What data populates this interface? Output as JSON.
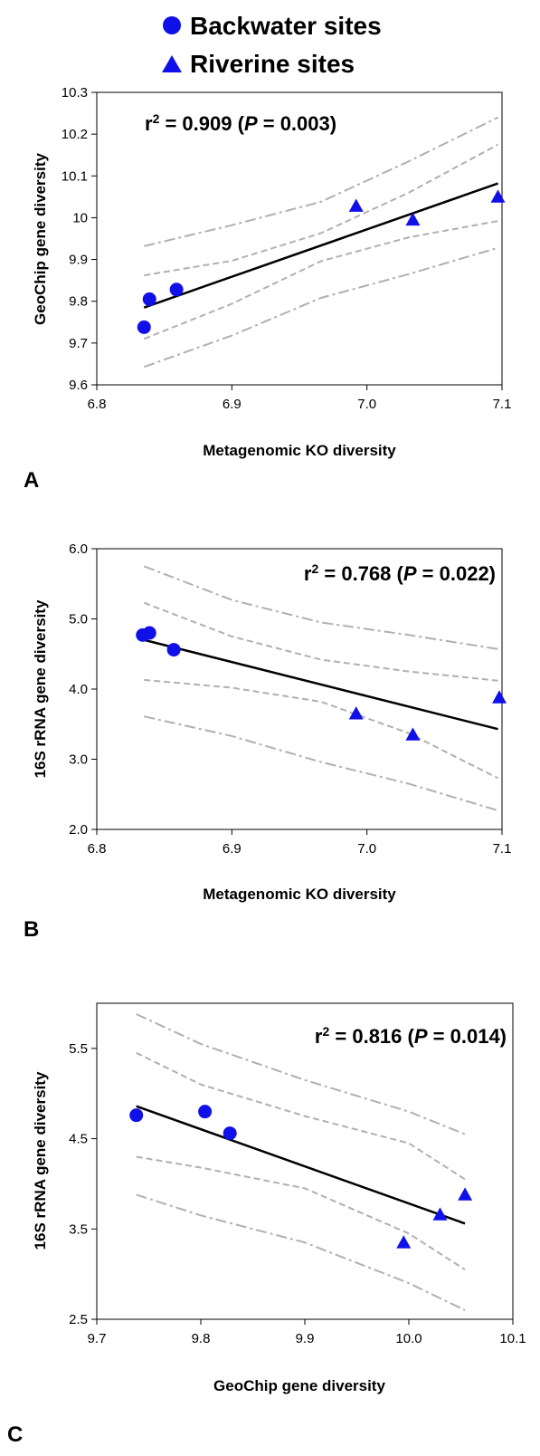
{
  "colors": {
    "marker": "#1010e8",
    "fit_line": "#000000",
    "band": "#b0b0b0",
    "axis": "#000000"
  },
  "legend": {
    "position": "top-center",
    "items": [
      {
        "label": "Backwater sites",
        "marker": "circle"
      },
      {
        "label": "Riverine sites",
        "marker": "triangle"
      }
    ]
  },
  "chart_data": [
    {
      "type": "scatter",
      "panel_label": "A",
      "xlabel": "Metagenomic KO diversity",
      "ylabel": "GeoChip gene diversity",
      "xlim": [
        6.8,
        7.1
      ],
      "ylim": [
        9.6,
        10.3
      ],
      "xticks": [
        "6.8",
        "6.9",
        "7.0",
        "7.1"
      ],
      "yticks": [
        "9.6",
        "9.7",
        "9.8",
        "9.9",
        "10",
        "10.1",
        "10.2",
        "10.3"
      ],
      "stat": {
        "r2_prefix": "r",
        "r2_sup": "2",
        "r2_value": " = 0.909 (",
        "p_letter": "P",
        "p_value": " = 0.003)"
      },
      "stat_position": "top-left",
      "series": [
        {
          "name": "Backwater sites",
          "marker": "circle",
          "x": [
            6.835,
            6.839,
            6.859
          ],
          "y": [
            9.738,
            9.805,
            9.828
          ]
        },
        {
          "name": "Riverine sites",
          "marker": "triangle",
          "x": [
            6.992,
            7.034,
            7.097
          ],
          "y": [
            10.028,
            9.995,
            10.05
          ]
        }
      ],
      "fit": {
        "x": [
          6.835,
          7.097
        ],
        "y": [
          9.785,
          10.082
        ]
      },
      "confidence_band": {
        "x": [
          6.835,
          6.9,
          6.966,
          7.031,
          7.097
        ],
        "upper": [
          9.862,
          9.897,
          9.963,
          10.06,
          10.175
        ],
        "lower": [
          9.71,
          9.794,
          9.896,
          9.953,
          9.992
        ]
      },
      "prediction_band": {
        "x": [
          6.835,
          6.9,
          6.966,
          7.031,
          7.097
        ],
        "upper": [
          9.932,
          9.982,
          10.038,
          10.135,
          10.24
        ],
        "lower": [
          9.643,
          9.718,
          9.808,
          9.865,
          9.928
        ]
      }
    },
    {
      "type": "scatter",
      "panel_label": "B",
      "xlabel": "Metagenomic KO diversity",
      "ylabel": "16S rRNA gene diversity",
      "xlim": [
        6.8,
        7.1
      ],
      "ylim": [
        2.0,
        6.0
      ],
      "xticks": [
        "6.8",
        "6.9",
        "7.0",
        "7.1"
      ],
      "yticks": [
        "2.0",
        "3.0",
        "4.0",
        "5.0",
        "6.0"
      ],
      "stat": {
        "r2_prefix": "r",
        "r2_sup": "2",
        "r2_value": " = 0.768 (",
        "p_letter": "P",
        "p_value": " = 0.022)"
      },
      "stat_position": "top-right",
      "series": [
        {
          "name": "Backwater sites",
          "marker": "circle",
          "x": [
            6.834,
            6.839,
            6.857
          ],
          "y": [
            4.77,
            4.8,
            4.56
          ]
        },
        {
          "name": "Riverine sites",
          "marker": "triangle",
          "x": [
            6.992,
            7.034,
            7.098
          ],
          "y": [
            3.65,
            3.35,
            3.88
          ]
        }
      ],
      "fit": {
        "x": [
          6.835,
          7.097
        ],
        "y": [
          4.7,
          3.43
        ]
      },
      "confidence_band": {
        "x": [
          6.835,
          6.9,
          6.966,
          7.031,
          7.097
        ],
        "upper": [
          5.23,
          4.75,
          4.42,
          4.25,
          4.12
        ],
        "lower": [
          4.13,
          4.02,
          3.82,
          3.37,
          2.73
        ]
      },
      "prediction_band": {
        "x": [
          6.835,
          6.9,
          6.966,
          7.031,
          7.097
        ],
        "upper": [
          5.75,
          5.27,
          4.95,
          4.77,
          4.57
        ],
        "lower": [
          3.61,
          3.33,
          2.96,
          2.65,
          2.27
        ]
      }
    },
    {
      "type": "scatter",
      "panel_label": "C",
      "xlabel": "GeoChip gene diversity",
      "ylabel": "16S rRNA gene diversity",
      "xlim": [
        9.7,
        10.1
      ],
      "ylim": [
        2.5,
        6.0
      ],
      "xticks": [
        "9.7",
        "9.8",
        "9.9",
        "10.0",
        "10.1"
      ],
      "yticks": [
        "2.5",
        "3.5",
        "4.5",
        "5.5"
      ],
      "stat": {
        "r2_prefix": "r",
        "r2_sup": "2",
        "r2_value": " = 0.816 (",
        "p_letter": "P",
        "p_value": " = 0.014)"
      },
      "stat_position": "top-right",
      "series": [
        {
          "name": "Backwater sites",
          "marker": "circle",
          "x": [
            9.738,
            9.804,
            9.828
          ],
          "y": [
            4.76,
            4.8,
            4.56
          ]
        },
        {
          "name": "Riverine sites",
          "marker": "triangle",
          "x": [
            9.995,
            10.03,
            10.054
          ],
          "y": [
            3.35,
            3.66,
            3.88
          ]
        }
      ],
      "fit": {
        "x": [
          9.738,
          10.054
        ],
        "y": [
          4.86,
          3.56
        ]
      },
      "confidence_band": {
        "x": [
          9.738,
          9.8,
          9.9,
          10.0,
          10.054
        ],
        "upper": [
          5.45,
          5.1,
          4.75,
          4.45,
          4.05
        ],
        "lower": [
          4.3,
          4.18,
          3.95,
          3.45,
          3.05
        ]
      },
      "prediction_band": {
        "x": [
          9.738,
          9.8,
          9.9,
          10.0,
          10.054
        ],
        "upper": [
          5.88,
          5.55,
          5.15,
          4.8,
          4.55
        ],
        "lower": [
          3.88,
          3.65,
          3.35,
          2.9,
          2.6
        ]
      }
    }
  ]
}
